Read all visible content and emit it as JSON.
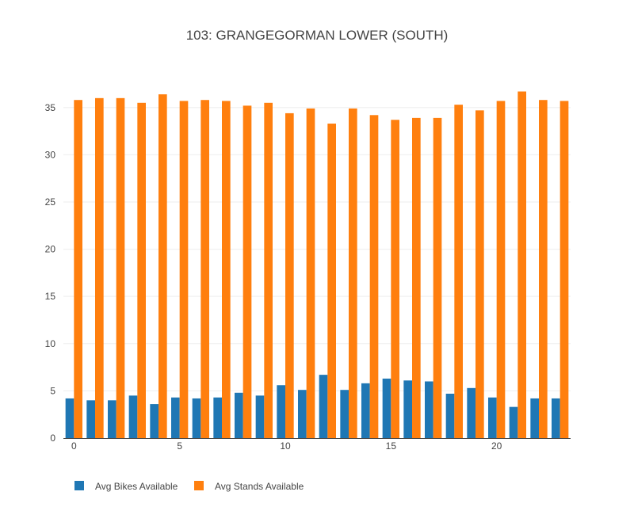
{
  "chart_data": {
    "type": "bar",
    "title": "103: GRANGEGORMAN LOWER (SOUTH)",
    "xlabel": "",
    "ylabel": "",
    "x": [
      0,
      1,
      2,
      3,
      4,
      5,
      6,
      7,
      8,
      9,
      10,
      11,
      12,
      13,
      14,
      15,
      16,
      17,
      18,
      19,
      20,
      21,
      22,
      23
    ],
    "xlim": [
      -0.5,
      23.5
    ],
    "ylim": [
      0,
      38
    ],
    "x_ticks": [
      0,
      5,
      10,
      15,
      20
    ],
    "y_ticks": [
      0,
      5,
      10,
      15,
      20,
      25,
      30,
      35
    ],
    "grid": true,
    "legend_position": "bottom-left",
    "series": [
      {
        "name": "Avg Bikes Available",
        "color": "#1f77b4",
        "values": [
          4.2,
          4.0,
          4.0,
          4.5,
          3.6,
          4.3,
          4.2,
          4.3,
          4.8,
          4.5,
          5.6,
          5.1,
          6.7,
          5.1,
          5.8,
          6.3,
          6.1,
          6.0,
          4.7,
          5.3,
          4.3,
          3.3,
          4.2,
          4.2
        ]
      },
      {
        "name": "Avg Stands Available",
        "color": "#ff7f0e",
        "values": [
          35.8,
          36.0,
          36.0,
          35.5,
          36.4,
          35.7,
          35.8,
          35.7,
          35.2,
          35.5,
          34.4,
          34.9,
          33.3,
          34.9,
          34.2,
          33.7,
          33.9,
          33.9,
          35.3,
          34.7,
          35.7,
          36.7,
          35.8,
          35.7
        ]
      }
    ]
  }
}
